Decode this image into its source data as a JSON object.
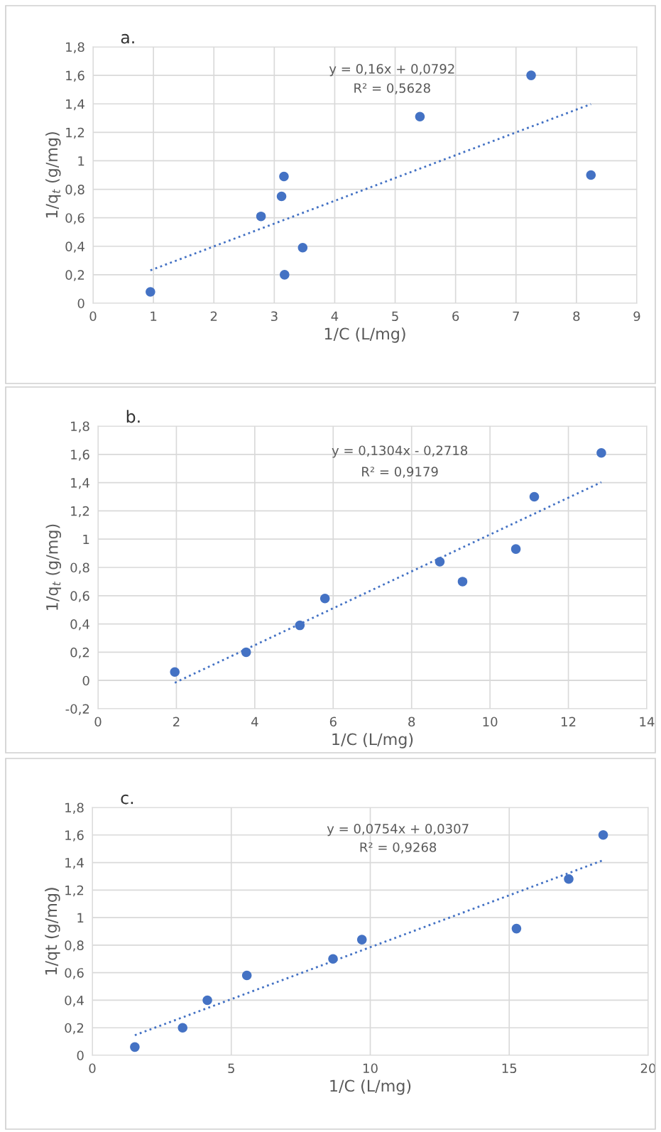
{
  "chart_data": [
    {
      "type": "scatter",
      "title": "a.",
      "xlabel": "1/C (L/mg)",
      "ylabel": "1/q$_{t}$ (g/mg)",
      "xlim": [
        0,
        9
      ],
      "xticks": [
        0,
        1,
        2,
        3,
        4,
        5,
        6,
        7,
        8,
        9
      ],
      "ylim": [
        0,
        1.8
      ],
      "yticks": [
        {
          "value": 0,
          "label": "0"
        },
        {
          "value": 0.2,
          "label": "0,2"
        },
        {
          "value": 0.4,
          "label": "0,4"
        },
        {
          "value": 0.6,
          "label": "0,6"
        },
        {
          "value": 0.8,
          "label": "0,8"
        },
        {
          "value": 1,
          "label": "1"
        },
        {
          "value": 1.2,
          "label": "1,2"
        },
        {
          "value": 1.4,
          "label": "1,4"
        },
        {
          "value": 1.6,
          "label": "1,6"
        },
        {
          "value": 1.8,
          "label": "1,8"
        }
      ],
      "grid": true,
      "annotations": [
        "y = 0,16x + 0,0792",
        "R² = 0,5628"
      ],
      "series": [
        {
          "color": "#4472c4",
          "marker": "circle",
          "x": [
            0.95,
            2.78,
            3.12,
            3.16,
            3.17,
            3.47,
            5.41,
            7.25,
            8.24
          ],
          "values": [
            0.08,
            0.61,
            0.75,
            0.89,
            0.2,
            0.39,
            1.31,
            1.6,
            0.9
          ]
        },
        {
          "type": "line",
          "color": "#4472c4",
          "line_style": "dotted",
          "x": [
            0.95,
            8.24
          ],
          "values": [
            0.231,
            1.398
          ]
        }
      ]
    },
    {
      "type": "scatter",
      "title": "b.",
      "xlabel": "1/C (L/mg)",
      "ylabel": "1/q$_{t}$ (g/mg)",
      "xlim": [
        0,
        14
      ],
      "xticks": [
        0,
        2,
        4,
        6,
        8,
        10,
        12,
        14
      ],
      "ylim": [
        -0.2,
        1.8
      ],
      "yticks": [
        {
          "value": -0.2,
          "label": "-0,2"
        },
        {
          "value": 0,
          "label": "0"
        },
        {
          "value": 0.2,
          "label": "0,2"
        },
        {
          "value": 0.4,
          "label": "0,4"
        },
        {
          "value": 0.6,
          "label": "0,6"
        },
        {
          "value": 0.8,
          "label": "0,8"
        },
        {
          "value": 1,
          "label": "1"
        },
        {
          "value": 1.2,
          "label": "1,2"
        },
        {
          "value": 1.4,
          "label": "1,4"
        },
        {
          "value": 1.6,
          "label": "1,6"
        },
        {
          "value": 1.8,
          "label": "1,8"
        }
      ],
      "grid": true,
      "annotations": [
        "y = 0,1304x - 0,2718",
        "R² = 0,9179"
      ],
      "series": [
        {
          "color": "#4472c4",
          "marker": "circle",
          "x": [
            1.96,
            3.78,
            5.15,
            5.79,
            8.72,
            9.3,
            10.66,
            11.13,
            12.84
          ],
          "values": [
            0.06,
            0.2,
            0.39,
            0.58,
            0.84,
            0.7,
            0.93,
            1.3,
            1.61
          ]
        },
        {
          "type": "line",
          "color": "#4472c4",
          "line_style": "dotted",
          "x": [
            1.96,
            12.84
          ],
          "values": [
            -0.016,
            1.403
          ]
        }
      ]
    },
    {
      "type": "scatter",
      "title": "c.",
      "xlabel": "1/C (L/mg)",
      "ylabel": "1/qt (g/mg)",
      "xlim": [
        0,
        20
      ],
      "xticks": [
        0,
        5,
        10,
        15,
        20
      ],
      "ylim": [
        0,
        1.8
      ],
      "yticks": [
        {
          "value": 0,
          "label": "0"
        },
        {
          "value": 0.2,
          "label": "0,2"
        },
        {
          "value": 0.4,
          "label": "0,4"
        },
        {
          "value": 0.6,
          "label": "0,6"
        },
        {
          "value": 0.8,
          "label": "0,8"
        },
        {
          "value": 1,
          "label": "1"
        },
        {
          "value": 1.2,
          "label": "1,2"
        },
        {
          "value": 1.4,
          "label": "1,4"
        },
        {
          "value": 1.6,
          "label": "1,6"
        },
        {
          "value": 1.8,
          "label": "1,8"
        }
      ],
      "grid": true,
      "annotations": [
        "y = 0,0754x + 0,0307",
        "R² = 0,9268"
      ],
      "series": [
        {
          "color": "#4472c4",
          "marker": "circle",
          "x": [
            1.53,
            3.25,
            4.14,
            5.56,
            8.66,
            9.7,
            15.26,
            17.14,
            18.38
          ],
          "values": [
            0.06,
            0.2,
            0.4,
            0.58,
            0.7,
            0.84,
            0.92,
            1.28,
            1.6
          ]
        },
        {
          "type": "line",
          "color": "#4472c4",
          "line_style": "dotted",
          "x": [
            1.53,
            18.38
          ],
          "values": [
            0.146,
            1.417
          ]
        }
      ]
    }
  ]
}
